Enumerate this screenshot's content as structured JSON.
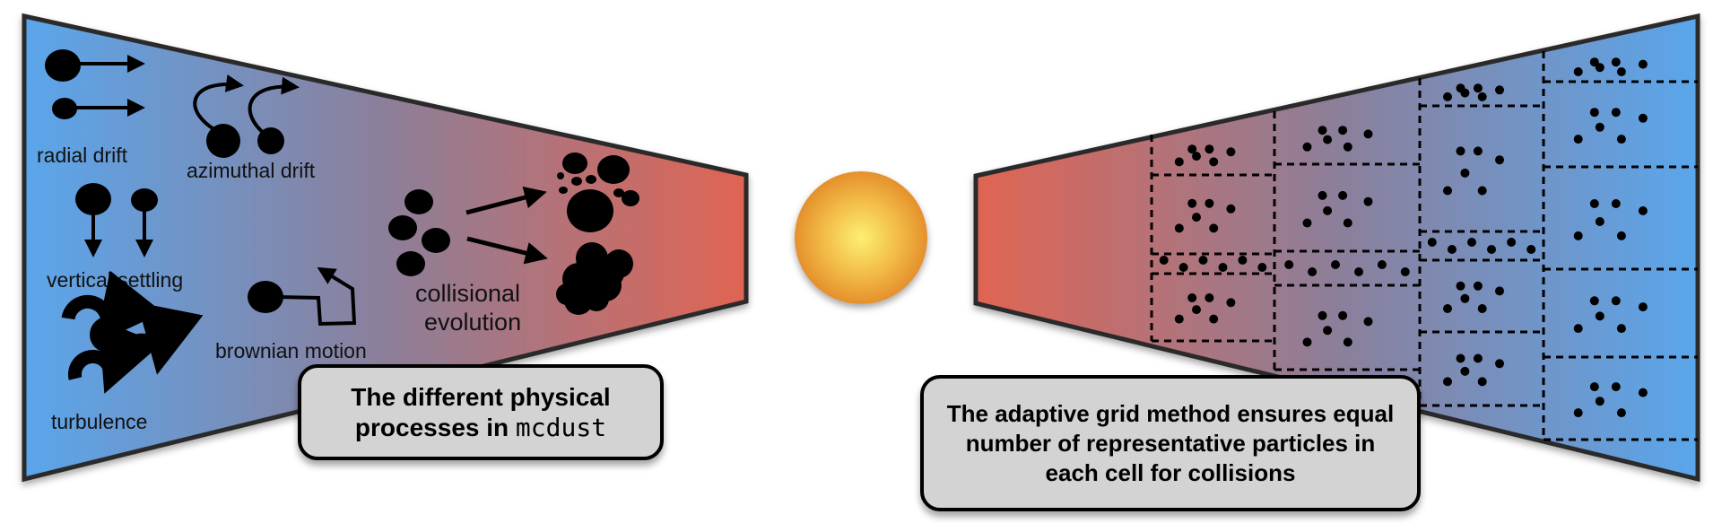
{
  "left_panel": {
    "labels": {
      "radial_drift": "radial drift",
      "azimuthal_drift": "azimuthal drift",
      "vertical_settling": "vertical settling",
      "turbulence": "turbulence",
      "brownian_motion": "brownian motion",
      "collisional_line1": "collisional",
      "collisional_line2": "evolution"
    },
    "caption_line1": "The different physical",
    "caption_line2_prefix": "processes in ",
    "caption_code": "mcdust"
  },
  "right_panel": {
    "caption": "The adaptive grid method ensures equal number of representative particles in each cell for collisions"
  },
  "colors": {
    "disk_blue": "#5aa6ec",
    "disk_red": "#e06452",
    "disk_mid": "#8c7f9a",
    "star_center": "#fcef73",
    "star_edge": "#e4902c",
    "caption_box": "#d3d3d3"
  },
  "icons": [
    "arrow-icon",
    "swirl-icon",
    "star-icon",
    "particle-icon"
  ]
}
